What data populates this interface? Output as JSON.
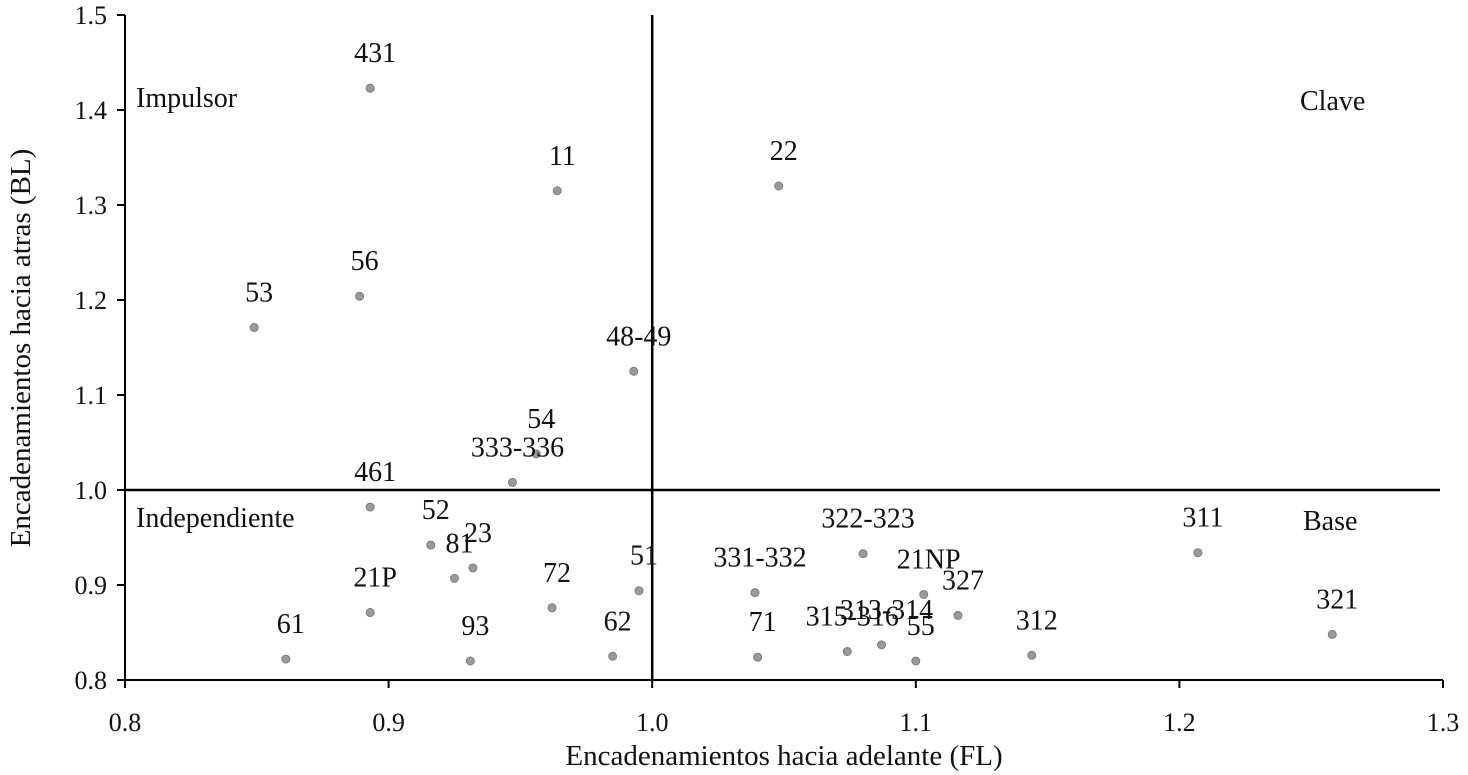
{
  "chart_data": {
    "type": "scatter",
    "xlabel": "Encadenamientos hacia adelante (FL)",
    "ylabel": "Encadenamientos hacia atras (BL)",
    "xlim": [
      0.8,
      1.3
    ],
    "ylim": [
      0.8,
      1.5
    ],
    "x_ticks": [
      0.8,
      0.9,
      1.0,
      1.1,
      1.2,
      1.3
    ],
    "x_tick_labels": [
      "0.8",
      "0.9",
      "1.0",
      "1.1",
      "1.2",
      "1.3"
    ],
    "y_ticks": [
      0.8,
      0.9,
      1.0,
      1.1,
      1.2,
      1.3,
      1.4,
      1.5
    ],
    "y_tick_labels": [
      "0.8",
      "0.9",
      "1.0",
      "1.1",
      "1.2",
      "1.3",
      "1.4",
      "1.5"
    ],
    "grid": false,
    "reference_lines": {
      "x": 1.0,
      "y": 1.0
    },
    "quadrant_labels": {
      "top_left": "Impulsor",
      "top_right": "Clave",
      "bottom_left": "Independiente",
      "bottom_right": "Base"
    },
    "points": [
      {
        "label": "431",
        "x": 0.893,
        "y": 1.423
      },
      {
        "label": "11",
        "x": 0.964,
        "y": 1.315
      },
      {
        "label": "22",
        "x": 1.048,
        "y": 1.32
      },
      {
        "label": "56",
        "x": 0.889,
        "y": 1.204
      },
      {
        "label": "53",
        "x": 0.849,
        "y": 1.171
      },
      {
        "label": "48-49",
        "x": 0.993,
        "y": 1.125
      },
      {
        "label": "54",
        "x": 0.956,
        "y": 1.038
      },
      {
        "label": "333-336",
        "x": 0.947,
        "y": 1.008
      },
      {
        "label": "461",
        "x": 0.893,
        "y": 0.982
      },
      {
        "label": "52",
        "x": 0.916,
        "y": 0.942
      },
      {
        "label": "23",
        "x": 0.932,
        "y": 0.918
      },
      {
        "label": "81",
        "x": 0.925,
        "y": 0.907
      },
      {
        "label": "21P",
        "x": 0.893,
        "y": 0.871
      },
      {
        "label": "72",
        "x": 0.962,
        "y": 0.876
      },
      {
        "label": "51",
        "x": 0.995,
        "y": 0.894
      },
      {
        "label": "61",
        "x": 0.861,
        "y": 0.822
      },
      {
        "label": "93",
        "x": 0.931,
        "y": 0.82
      },
      {
        "label": "62",
        "x": 0.985,
        "y": 0.825
      },
      {
        "label": "331-332",
        "x": 1.039,
        "y": 0.892
      },
      {
        "label": "71",
        "x": 1.04,
        "y": 0.824
      },
      {
        "label": "322-323",
        "x": 1.08,
        "y": 0.933
      },
      {
        "label": "21NP",
        "x": 1.103,
        "y": 0.89
      },
      {
        "label": "327",
        "x": 1.116,
        "y": 0.868
      },
      {
        "label": "313-314",
        "x": 1.087,
        "y": 0.837
      },
      {
        "label": "315-316",
        "x": 1.074,
        "y": 0.83
      },
      {
        "label": "55",
        "x": 1.1,
        "y": 0.82
      },
      {
        "label": "312",
        "x": 1.144,
        "y": 0.826
      },
      {
        "label": "311",
        "x": 1.207,
        "y": 0.934
      },
      {
        "label": "321",
        "x": 1.258,
        "y": 0.848
      }
    ]
  }
}
